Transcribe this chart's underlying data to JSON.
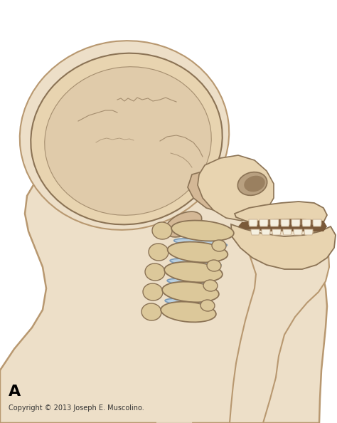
{
  "background_color": "#ffffff",
  "label_A": "A",
  "label_A_fontsize": 16,
  "label_A_bold": true,
  "copyright_text": "Copyright © 2013 Joseph E. Muscolino.",
  "copyright_fontsize": 7,
  "figsize": [
    4.74,
    5.94
  ],
  "dpi": 100,
  "body_skin_color": "#eddfc8",
  "body_outline_color": "#b89870",
  "skull_outer_color": "#e8d4b0",
  "skull_inner_color": "#d4b896",
  "skull_shadow_color": "#c4a07a",
  "skull_outline_color": "#8b7355",
  "bone_highlight": "#f0e0c0",
  "teeth_color": "#f5f0e0",
  "teeth_outline": "#c8b090",
  "spine_bone_color": "#dcc89a",
  "spine_disc_color": "#b8cfe0",
  "spine_outline_color": "#8b7355",
  "dark_cavity": "#7a5a3a",
  "suture_color": "#8b7355"
}
